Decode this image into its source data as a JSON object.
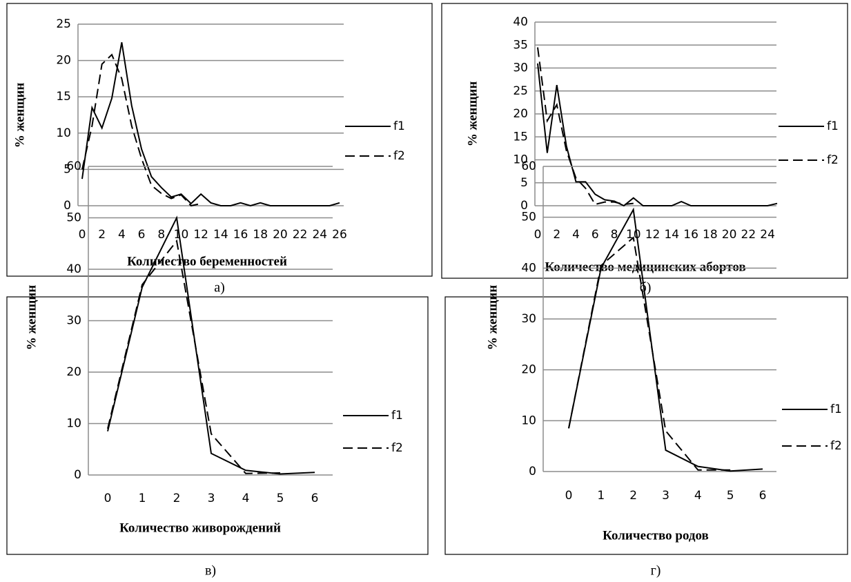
{
  "chart_data": [
    {
      "type": "line",
      "label": "а)",
      "xlabel": "Количество беременностей",
      "ylabel": "% женщин",
      "categories": [
        "0",
        null,
        "2",
        null,
        "4",
        null,
        "6",
        null,
        "8",
        null,
        "10",
        null,
        "12",
        null,
        "14",
        null,
        "16",
        null,
        "18",
        null,
        "20",
        null,
        "22",
        null,
        "24",
        null,
        "26"
      ],
      "ylim": [
        0,
        25
      ],
      "yticks": [
        0,
        5,
        10,
        15,
        20,
        25
      ],
      "grid": true,
      "legend": "right",
      "series": [
        {
          "name": "f1",
          "color": "#000000",
          "style": "solid",
          "values": [
            3.7,
            13.5,
            10.7,
            14.8,
            22.5,
            13.8,
            7.8,
            4,
            2.5,
            1.2,
            1.6,
            0.3,
            1.6,
            0.4,
            0,
            0,
            0.4,
            0,
            0.4,
            0,
            0,
            0,
            0,
            0,
            0,
            0,
            0.4
          ]
        },
        {
          "name": "f2",
          "color": "#000000",
          "style": "dashed",
          "values": [
            5,
            11,
            19.5,
            20.8,
            17.5,
            11,
            6.5,
            2.8,
            1.7,
            1,
            1.5,
            0,
            0.3,
            null,
            null,
            null,
            null,
            null,
            null,
            null,
            null,
            null,
            null,
            null,
            null,
            null,
            null
          ]
        }
      ]
    },
    {
      "type": "line",
      "label": "б)",
      "xlabel": "Количество медицинских абортов",
      "ylabel": "% женщин",
      "categories": [
        "0",
        null,
        "2",
        null,
        "4",
        null,
        "6",
        null,
        "8",
        null,
        "10",
        null,
        "12",
        null,
        "14",
        null,
        "16",
        null,
        "18",
        null,
        "20",
        null,
        "22",
        null,
        "24",
        null
      ],
      "ylim": [
        0,
        40
      ],
      "yticks": [
        0,
        5,
        10,
        15,
        20,
        25,
        30,
        35,
        40
      ],
      "grid": true,
      "legend": "right",
      "series": [
        {
          "name": "f1",
          "color": "#000000",
          "style": "solid",
          "values": [
            31,
            11.5,
            26.3,
            13,
            5.2,
            5.2,
            2.5,
            1.3,
            1,
            0,
            1.7,
            0,
            0,
            0,
            0,
            0.9,
            0,
            0,
            0,
            0,
            0,
            0,
            0,
            0,
            0,
            0.5
          ]
        },
        {
          "name": "f2",
          "color": "#000000",
          "style": "dashed",
          "values": [
            34.5,
            18.5,
            22,
            12,
            6,
            3.8,
            0.3,
            0.8,
            0.8,
            0.3,
            0.5,
            null,
            null,
            null,
            null,
            null,
            null,
            null,
            null,
            null,
            null,
            null,
            null,
            null,
            null,
            null
          ]
        }
      ]
    },
    {
      "type": "line",
      "label": "в)",
      "xlabel": "Количество живорождений",
      "ylabel": "% женщин",
      "categories": [
        "0",
        "1",
        "2",
        "3",
        "4",
        "5",
        "6"
      ],
      "ylim": [
        0,
        60
      ],
      "yticks": [
        0,
        10,
        20,
        30,
        40,
        50,
        60
      ],
      "grid": true,
      "legend": "right",
      "series": [
        {
          "name": "f1",
          "color": "#000000",
          "style": "solid",
          "values": [
            8.5,
            36.5,
            50,
            4.2,
            0.9,
            0.2,
            0.5
          ]
        },
        {
          "name": "f2",
          "color": "#000000",
          "style": "dashed",
          "values": [
            9,
            37,
            45.5,
            8,
            0.3,
            0.4,
            null
          ]
        }
      ]
    },
    {
      "type": "line",
      "label": "г)",
      "xlabel": "Количество родов",
      "ylabel": "% женщин",
      "categories": [
        "0",
        "1",
        "2",
        "3",
        "4",
        "5",
        "6"
      ],
      "ylim": [
        0,
        60
      ],
      "yticks": [
        0,
        10,
        20,
        30,
        40,
        50,
        60
      ],
      "grid": true,
      "legend": "right",
      "series": [
        {
          "name": "f1",
          "color": "#000000",
          "style": "solid",
          "values": [
            8.5,
            40,
            51.5,
            4.2,
            1,
            0.1,
            0.5
          ]
        },
        {
          "name": "f2",
          "color": "#000000",
          "style": "dashed",
          "values": [
            8.5,
            40.5,
            46,
            8,
            0.3,
            0.3,
            null
          ]
        }
      ]
    }
  ]
}
